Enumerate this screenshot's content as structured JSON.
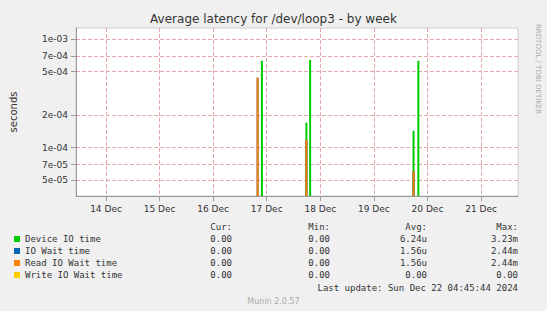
{
  "chart_data": {
    "type": "line",
    "title": "Average latency for /dev/loop3 - by week",
    "y_label": "seconds",
    "log": "y",
    "grid": true,
    "x": [
      16.83,
      16.91,
      17.74,
      17.81,
      19.74,
      19.83
    ],
    "xlim": [
      13.44,
      21.69
    ],
    "xticks": [
      {
        "value": 14,
        "label": "14 Dec"
      },
      {
        "value": 15,
        "label": "15 Dec"
      },
      {
        "value": 16,
        "label": "16 Dec"
      },
      {
        "value": 17,
        "label": "17 Dec"
      },
      {
        "value": 18,
        "label": "18 Dec"
      },
      {
        "value": 19,
        "label": "19 Dec"
      },
      {
        "value": 20,
        "label": "20 Dec"
      },
      {
        "value": 21,
        "label": "21 Dec"
      }
    ],
    "ylim": [
      3.6e-05,
      0.00126
    ],
    "yticks": [
      {
        "value": 5e-05,
        "label": "5e-05"
      },
      {
        "value": 7e-05,
        "label": "7e-05"
      },
      {
        "value": 0.0001,
        "label": "1e-04"
      },
      {
        "value": 0.0002,
        "label": "2e-04"
      },
      {
        "value": 0.0005,
        "label": "5e-04"
      },
      {
        "value": 0.0007,
        "label": "7e-04"
      },
      {
        "value": 0.001,
        "label": "1e-03"
      }
    ],
    "stats_columns": [
      "Cur:",
      "Min:",
      "Avg:",
      "Max:"
    ],
    "series": [
      {
        "name": "Device IO time",
        "color": "#00cc00",
        "values": [
          null,
          0.00063,
          0.00017,
          0.00064,
          0.000143,
          0.00063
        ],
        "stats": [
          "0.00",
          "0.00",
          "6.24u",
          "3.23m"
        ]
      },
      {
        "name": "IO Wait time",
        "color": "#0066b3",
        "values": [
          0.00044,
          null,
          0.000118,
          null,
          6.1e-05,
          null
        ],
        "stats": [
          "0.00",
          "0.00",
          "1.56u",
          "2.44m"
        ]
      },
      {
        "name": "Read IO Wait time",
        "color": "#ff8000",
        "values": [
          0.00044,
          null,
          0.000118,
          null,
          6.1e-05,
          null
        ],
        "stats": [
          "0.00",
          "0.00",
          "1.56u",
          "2.44m"
        ]
      },
      {
        "name": "Write IO Wait time",
        "color": "#ffcc00",
        "values": [
          null,
          null,
          null,
          null,
          null,
          null
        ],
        "stats": [
          "0.00",
          "0.00",
          "0.00",
          "0.00"
        ]
      }
    ],
    "side_text": "RRDTOOL / TOBI OETIKER",
    "footer": "Last update: Sun Dec 22 04:45:44 2024",
    "credit": "Munin 2.0.57"
  }
}
